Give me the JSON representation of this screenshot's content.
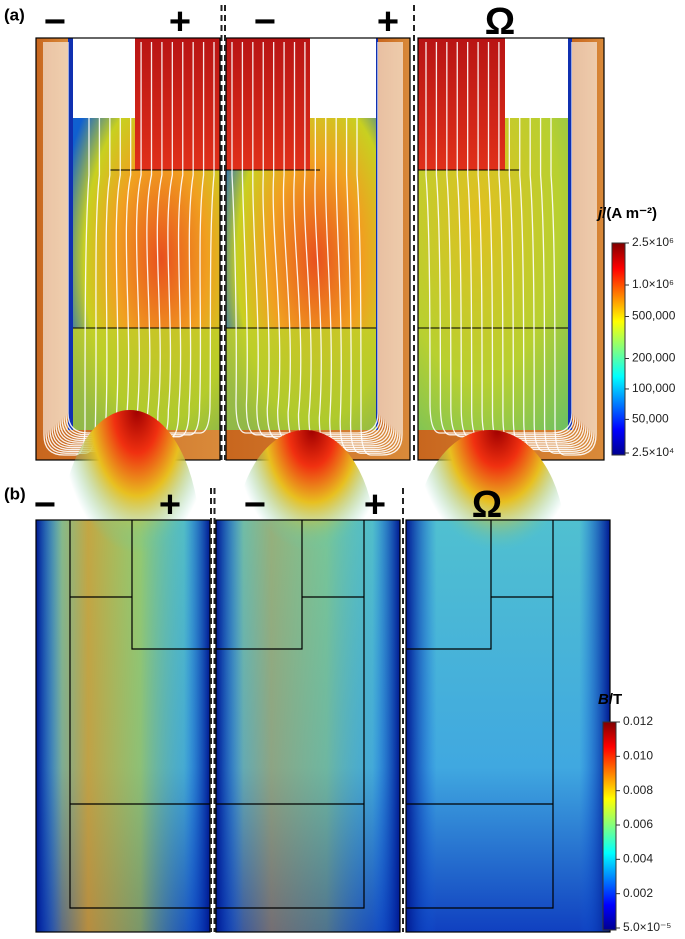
{
  "panels": [
    {
      "label": "(a)",
      "terminals": [
        "−",
        "+",
        "−",
        "+",
        "Ω"
      ],
      "colorbar": {
        "symbol": "j",
        "unit": "/(A m⁻²)",
        "ticks": [
          "2.5×10⁶",
          "1.0×10⁶",
          "500,000",
          "200,000",
          "100,000",
          "50,000",
          "2.5×10⁴"
        ]
      }
    },
    {
      "label": "(b)",
      "terminals": [
        "−",
        "+",
        "−",
        "+",
        "Ω"
      ],
      "colorbar": {
        "symbol": "B",
        "unit": "/T",
        "ticks": [
          "0.012",
          "0.010",
          "0.008",
          "0.006",
          "0.004",
          "0.002",
          "5.0×10⁻⁵"
        ]
      }
    }
  ]
}
